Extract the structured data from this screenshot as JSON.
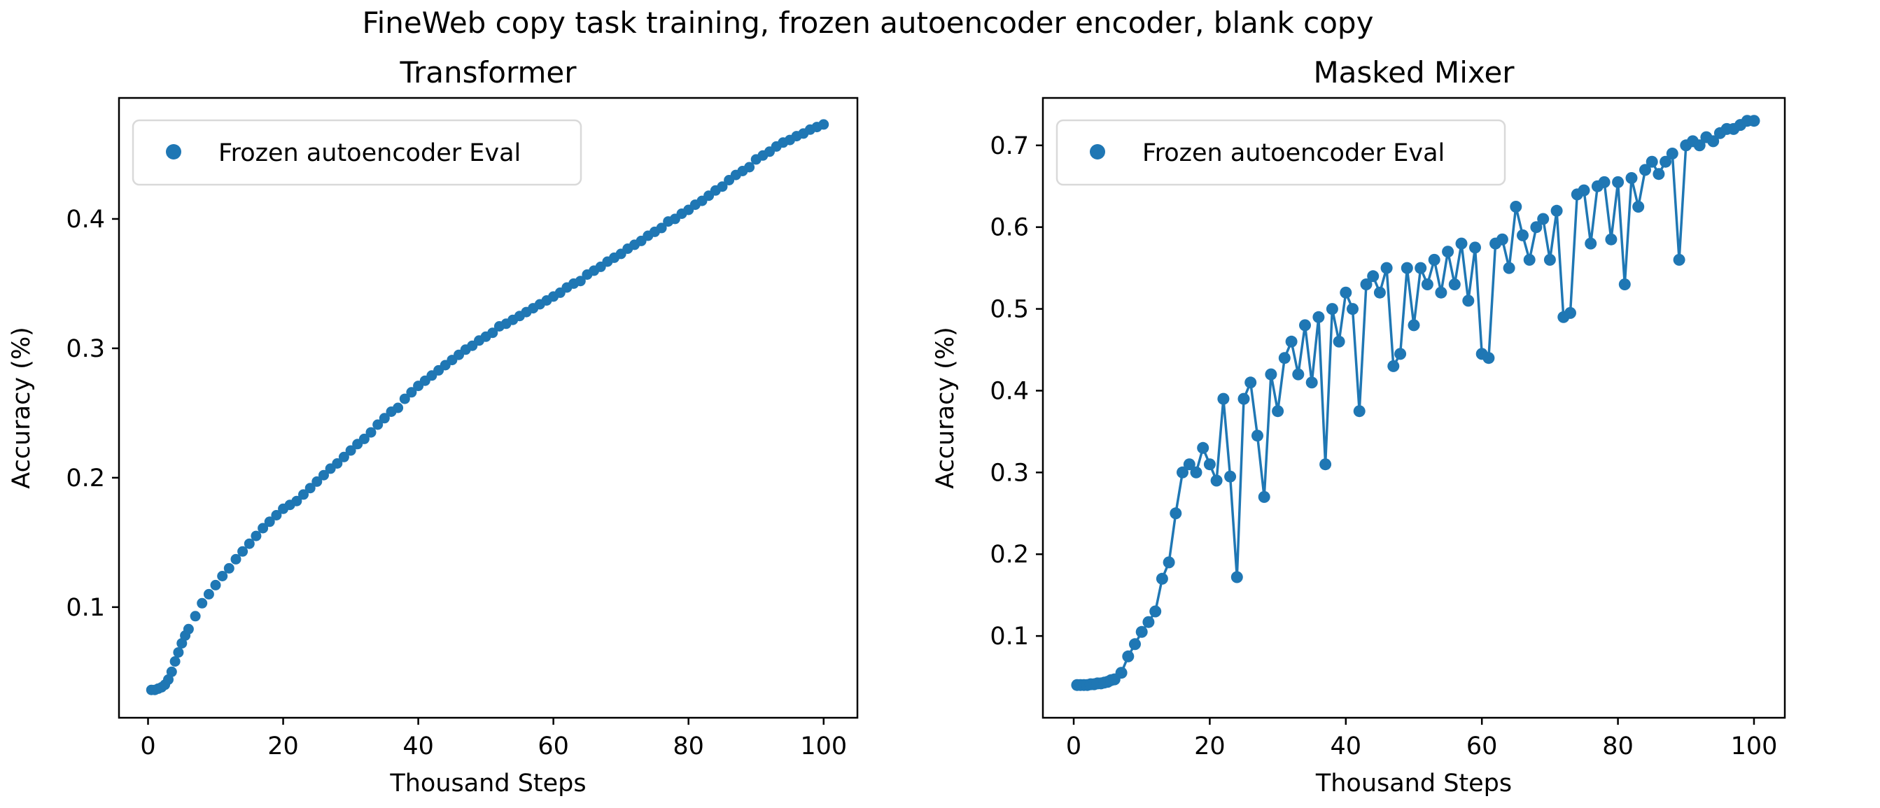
{
  "figure": {
    "suptitle": "FineWeb copy task training, frozen autoencoder encoder, blank copy",
    "background": "#ffffff",
    "text_color": "#000000",
    "accent_color": "#1f77b4"
  },
  "chart_data": [
    {
      "type": "scatter",
      "title": "Transformer",
      "xlabel": "Thousand Steps",
      "ylabel": "Accuracy (%)",
      "legend": [
        "Frozen autoencoder Eval"
      ],
      "legend_position": "upper left",
      "marker_color": "#1f77b4",
      "connect_line": false,
      "grid": false,
      "xlim": [
        -4.3,
        105.0
      ],
      "ylim": [
        0.0145,
        0.4935
      ],
      "xticks": [
        0,
        20,
        40,
        60,
        80,
        100
      ],
      "yticks": [
        0.1,
        0.2,
        0.3,
        0.4
      ],
      "x": [
        0.5,
        1,
        1.5,
        2,
        2.5,
        3,
        3.5,
        4,
        4.5,
        5,
        5.5,
        6,
        7,
        8,
        9,
        10,
        11,
        12,
        13,
        14,
        15,
        16,
        17,
        18,
        19,
        20,
        21,
        22,
        23,
        24,
        25,
        26,
        27,
        28,
        29,
        30,
        31,
        32,
        33,
        34,
        35,
        36,
        37,
        38,
        39,
        40,
        41,
        42,
        43,
        44,
        45,
        46,
        47,
        48,
        49,
        50,
        51,
        52,
        53,
        54,
        55,
        56,
        57,
        58,
        59,
        60,
        61,
        62,
        63,
        64,
        65,
        66,
        67,
        68,
        69,
        70,
        71,
        72,
        73,
        74,
        75,
        76,
        77,
        78,
        79,
        80,
        81,
        82,
        83,
        84,
        85,
        86,
        87,
        88,
        89,
        90,
        91,
        92,
        93,
        94,
        95,
        96,
        97,
        98,
        99,
        100
      ],
      "y": [
        0.036,
        0.036,
        0.037,
        0.038,
        0.04,
        0.044,
        0.05,
        0.058,
        0.065,
        0.072,
        0.078,
        0.083,
        0.093,
        0.103,
        0.11,
        0.117,
        0.124,
        0.13,
        0.137,
        0.143,
        0.149,
        0.155,
        0.161,
        0.166,
        0.171,
        0.176,
        0.179,
        0.182,
        0.187,
        0.192,
        0.197,
        0.202,
        0.207,
        0.211,
        0.216,
        0.221,
        0.226,
        0.23,
        0.235,
        0.241,
        0.246,
        0.251,
        0.254,
        0.261,
        0.266,
        0.271,
        0.275,
        0.279,
        0.283,
        0.287,
        0.291,
        0.295,
        0.299,
        0.302,
        0.306,
        0.309,
        0.312,
        0.317,
        0.319,
        0.322,
        0.325,
        0.328,
        0.331,
        0.334,
        0.337,
        0.34,
        0.343,
        0.347,
        0.35,
        0.352,
        0.357,
        0.36,
        0.363,
        0.367,
        0.37,
        0.373,
        0.377,
        0.38,
        0.383,
        0.387,
        0.39,
        0.393,
        0.398,
        0.4,
        0.404,
        0.407,
        0.411,
        0.414,
        0.418,
        0.422,
        0.425,
        0.43,
        0.434,
        0.437,
        0.44,
        0.446,
        0.449,
        0.452,
        0.456,
        0.459,
        0.461,
        0.464,
        0.466,
        0.469,
        0.471,
        0.473
      ]
    },
    {
      "type": "scatter",
      "title": "Masked Mixer",
      "xlabel": "Thousand Steps",
      "ylabel": "Accuracy (%)",
      "legend": [
        "Frozen autoencoder Eval"
      ],
      "legend_position": "upper left",
      "marker_color": "#1f77b4",
      "connect_line": true,
      "grid": false,
      "xlim": [
        -4.53,
        104.53
      ],
      "ylim": [
        0.0,
        0.758
      ],
      "xticks": [
        0,
        20,
        40,
        60,
        80,
        100
      ],
      "yticks": [
        0.1,
        0.2,
        0.3,
        0.4,
        0.5,
        0.6,
        0.7
      ],
      "x": [
        0.5,
        1,
        1.5,
        2,
        2.5,
        3,
        3.5,
        4,
        4.5,
        5,
        5.5,
        6,
        7,
        8,
        9,
        10,
        11,
        12,
        13,
        14,
        15,
        16,
        17,
        18,
        19,
        20,
        21,
        22,
        23,
        24,
        25,
        26,
        27,
        28,
        29,
        30,
        31,
        32,
        33,
        34,
        35,
        36,
        37,
        38,
        39,
        40,
        41,
        42,
        43,
        44,
        45,
        46,
        47,
        48,
        49,
        50,
        51,
        52,
        53,
        54,
        55,
        56,
        57,
        58,
        59,
        60,
        61,
        62,
        63,
        64,
        65,
        66,
        67,
        68,
        69,
        70,
        71,
        72,
        73,
        74,
        75,
        76,
        77,
        78,
        79,
        80,
        81,
        82,
        83,
        84,
        85,
        86,
        87,
        88,
        89,
        90,
        91,
        92,
        93,
        94,
        95,
        96,
        97,
        98,
        99,
        100
      ],
      "y": [
        0.04,
        0.04,
        0.04,
        0.04,
        0.041,
        0.041,
        0.042,
        0.042,
        0.043,
        0.044,
        0.046,
        0.047,
        0.055,
        0.075,
        0.09,
        0.105,
        0.117,
        0.13,
        0.17,
        0.19,
        0.25,
        0.3,
        0.31,
        0.3,
        0.33,
        0.31,
        0.29,
        0.39,
        0.295,
        0.172,
        0.39,
        0.41,
        0.345,
        0.27,
        0.42,
        0.375,
        0.44,
        0.46,
        0.42,
        0.48,
        0.41,
        0.49,
        0.31,
        0.5,
        0.46,
        0.52,
        0.5,
        0.375,
        0.53,
        0.54,
        0.52,
        0.55,
        0.43,
        0.445,
        0.55,
        0.48,
        0.55,
        0.53,
        0.56,
        0.52,
        0.57,
        0.53,
        0.58,
        0.51,
        0.575,
        0.445,
        0.44,
        0.58,
        0.585,
        0.55,
        0.625,
        0.59,
        0.56,
        0.6,
        0.61,
        0.56,
        0.62,
        0.49,
        0.495,
        0.64,
        0.645,
        0.58,
        0.65,
        0.655,
        0.585,
        0.655,
        0.53,
        0.66,
        0.625,
        0.67,
        0.68,
        0.665,
        0.68,
        0.69,
        0.56,
        0.7,
        0.705,
        0.7,
        0.71,
        0.705,
        0.715,
        0.72,
        0.72,
        0.725,
        0.73,
        0.73
      ]
    }
  ]
}
